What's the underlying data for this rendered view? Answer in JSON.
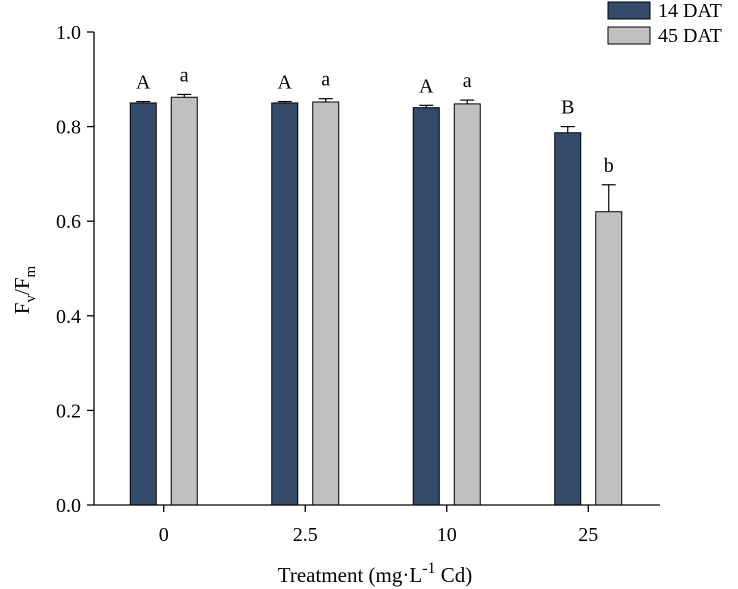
{
  "chart_data": {
    "type": "bar",
    "categories": [
      "0",
      "2.5",
      "10",
      "25"
    ],
    "series": [
      {
        "name": "14 DAT",
        "color": "#334a6b",
        "values": [
          0.85,
          0.85,
          0.84,
          0.787
        ],
        "errors": [
          0.003,
          0.003,
          0.005,
          0.013
        ],
        "letters": [
          "A",
          "A",
          "A",
          "B"
        ]
      },
      {
        "name": "45 DAT",
        "color": "#c0c0c0",
        "values": [
          0.862,
          0.852,
          0.848,
          0.62
        ],
        "errors": [
          0.006,
          0.007,
          0.008,
          0.057
        ],
        "letters": [
          "a",
          "a",
          "a",
          "b"
        ]
      }
    ],
    "ylim": [
      0.0,
      1.0
    ],
    "yticks": [
      "0.0",
      "0.2",
      "0.4",
      "0.6",
      "0.8",
      "1.0"
    ],
    "ylabel": {
      "main": "F",
      "sub1": "v",
      "sep": "/F",
      "sub2": "m"
    },
    "xlabel": {
      "main": "Treatment (mg·L",
      "sup": "-1",
      "tail": " Cd)"
    },
    "legend": "top-right"
  }
}
